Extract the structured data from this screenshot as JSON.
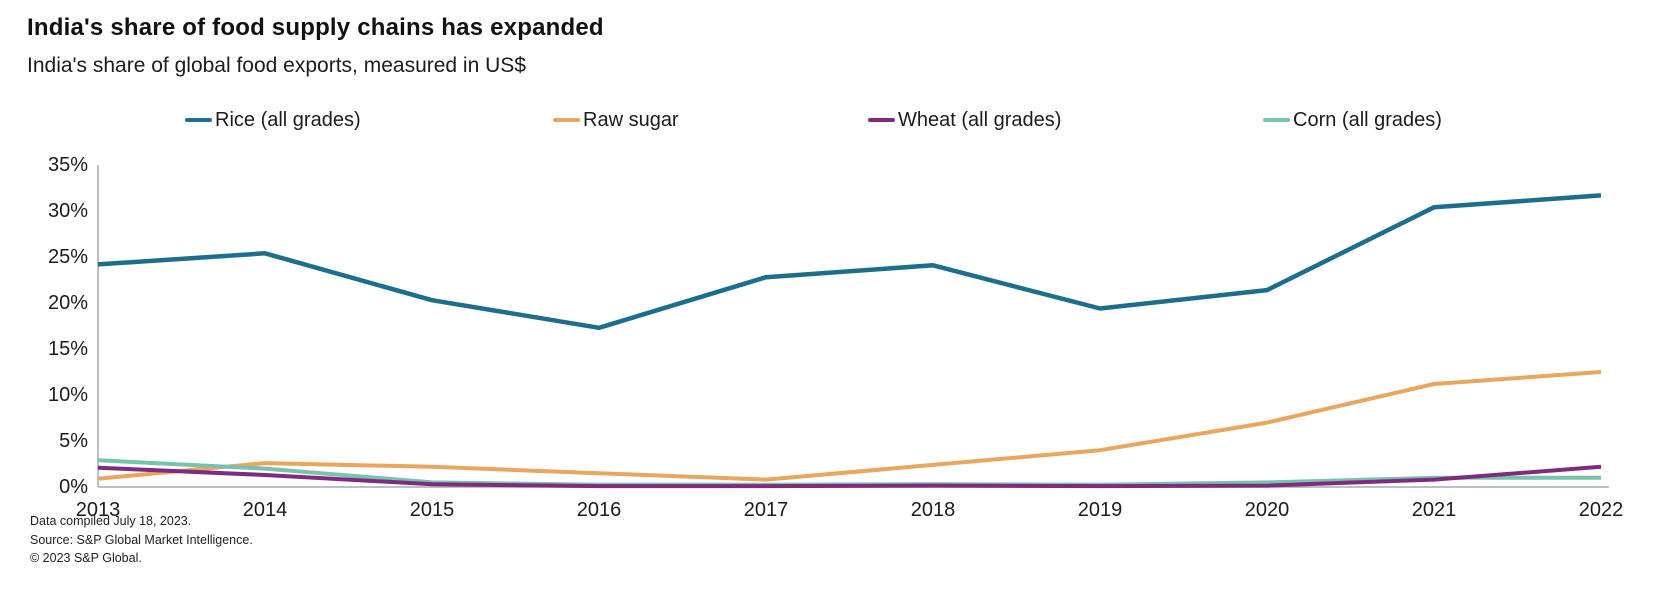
{
  "header": {
    "title": "India's share of food supply chains has expanded",
    "subtitle": "India's share of global food exports, measured in US$"
  },
  "chart_data": {
    "type": "line",
    "x": [
      "2013",
      "2014",
      "2015",
      "2016",
      "2017",
      "2018",
      "2019",
      "2020",
      "2021",
      "2022"
    ],
    "series": [
      {
        "name": "Rice (all grades)",
        "color": "#1d6e8e",
        "values": [
          24.2,
          25.4,
          20.3,
          17.3,
          22.8,
          24.1,
          19.4,
          21.4,
          30.4,
          31.7
        ]
      },
      {
        "name": "Raw sugar",
        "color": "#eaa55e",
        "values": [
          0.9,
          2.6,
          2.2,
          1.5,
          0.8,
          2.4,
          4.0,
          7.0,
          11.2,
          12.5
        ]
      },
      {
        "name": "Wheat (all grades)",
        "color": "#7e2b80",
        "values": [
          2.1,
          1.3,
          0.3,
          0.1,
          0.1,
          0.15,
          0.1,
          0.15,
          0.8,
          2.2
        ]
      },
      {
        "name": "Corn (all grades)",
        "color": "#77c3ab",
        "values": [
          2.9,
          2.0,
          0.5,
          0.25,
          0.25,
          0.3,
          0.25,
          0.5,
          1.0,
          1.0
        ]
      }
    ],
    "title": "India's share of food supply chains has expanded",
    "xlabel": "",
    "ylabel": "",
    "ylim": [
      0,
      35
    ],
    "y_ticks": [
      "0%",
      "5%",
      "10%",
      "15%",
      "20%",
      "25%",
      "30%",
      "35%"
    ],
    "grid": false,
    "legend_position": "top",
    "axis_color": "#aaaaaa"
  },
  "footer": {
    "line1": "Data compiled July 18, 2023.",
    "line2": "Source: S&P Global Market Intelligence.",
    "line3": "© 2023 S&P Global."
  }
}
